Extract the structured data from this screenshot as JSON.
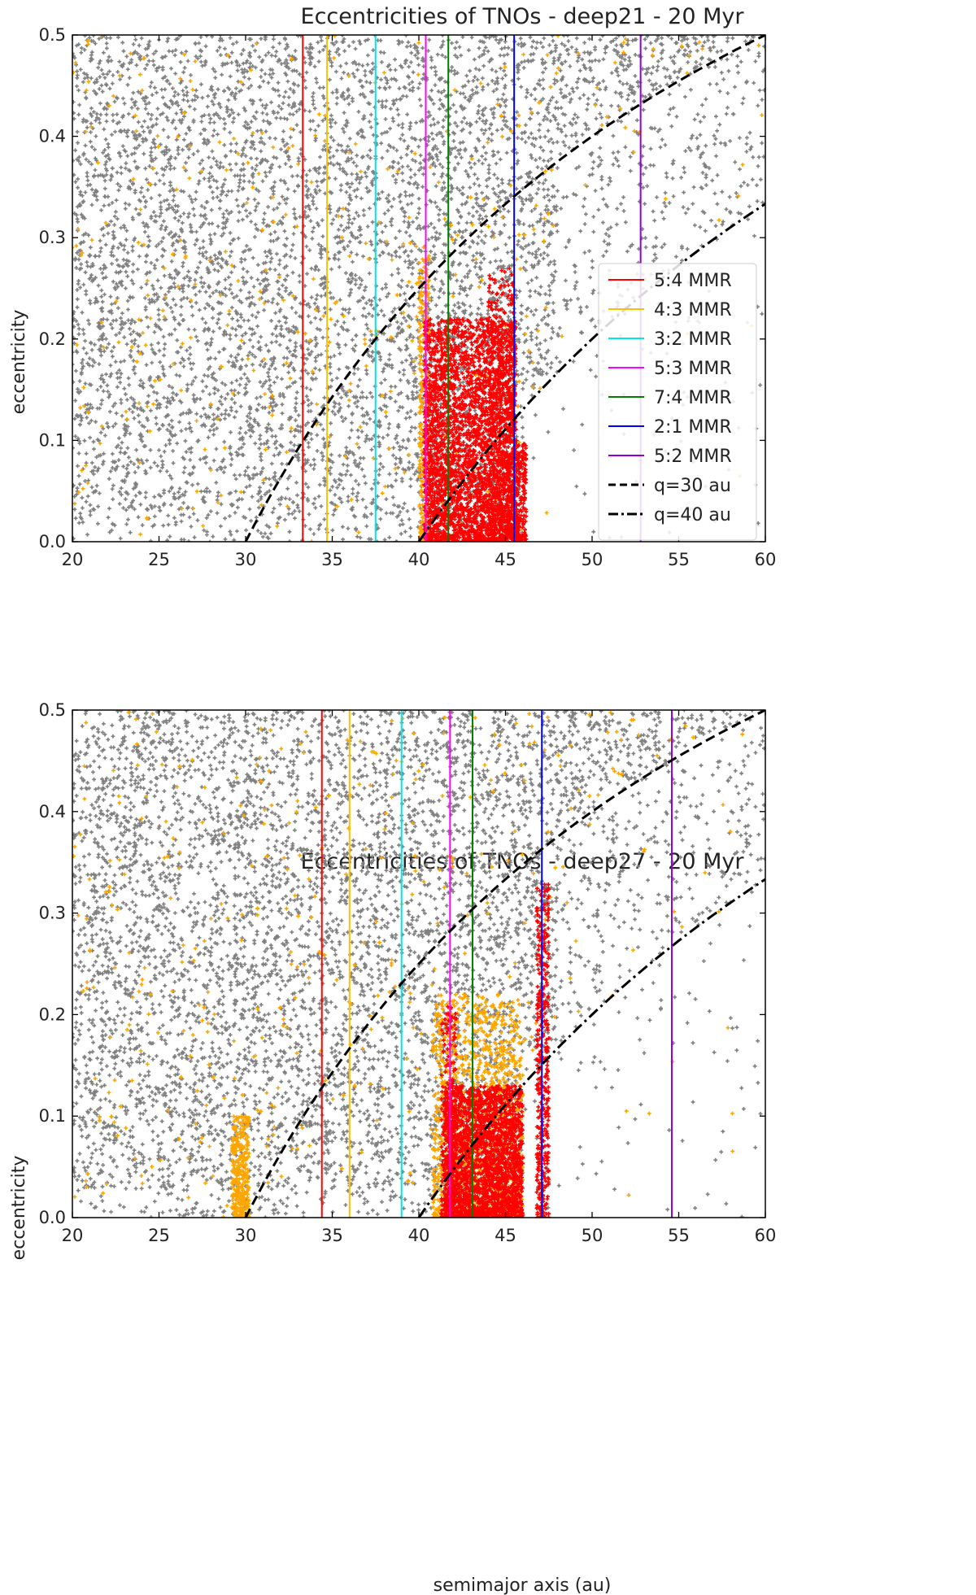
{
  "chart_data": [
    {
      "type": "scatter",
      "title": "Eccentricities of TNOs - deep21 - 20 Myr",
      "xlabel": "",
      "ylabel": "eccentricity",
      "xlim": [
        20,
        60
      ],
      "ylim": [
        0,
        0.5
      ],
      "xticks": [
        20,
        25,
        30,
        35,
        40,
        45,
        50,
        55,
        60
      ],
      "yticks": [
        0.0,
        0.1,
        0.2,
        0.3,
        0.4,
        0.5
      ],
      "grid": false,
      "scatter_colors": {
        "background": "#808080",
        "intermediate": "#ffa500",
        "resonant": "#ff0000"
      },
      "resonances": [
        {
          "name": "5:4 MMR",
          "a": 33.3,
          "color": "#ff0000"
        },
        {
          "name": "4:3 MMR",
          "a": 34.7,
          "color": "#ffc000"
        },
        {
          "name": "3:2 MMR",
          "a": 37.5,
          "color": "#00e5e5"
        },
        {
          "name": "5:3 MMR",
          "a": 40.4,
          "color": "#ff00ff"
        },
        {
          "name": "7:4 MMR",
          "a": 41.7,
          "color": "#008000"
        },
        {
          "name": "2:1 MMR",
          "a": 45.5,
          "color": "#0000ff"
        },
        {
          "name": "5:2 MMR",
          "a": 52.8,
          "color": "#9400d3"
        }
      ],
      "perihelion_curves": [
        {
          "name": "q=30 au",
          "q": 30,
          "style": "dashed"
        },
        {
          "name": "q=40 au",
          "q": 40,
          "style": "dashdot"
        }
      ],
      "legend_position": "center-right",
      "clusters": [
        {
          "a_min": 40.0,
          "a_max": 40.6,
          "e_max": 0.28,
          "color": "#ffa500",
          "count": 300
        },
        {
          "a_min": 40.3,
          "a_max": 45.6,
          "e_max": 0.22,
          "color": "#ff0000",
          "count": 3200
        },
        {
          "a_min": 44.0,
          "a_max": 45.6,
          "e_max": 0.27,
          "color": "#ff0000",
          "count": 500
        },
        {
          "a_min": 45.6,
          "a_max": 46.2,
          "e_max": 0.1,
          "color": "#ff0000",
          "count": 200
        }
      ]
    },
    {
      "type": "scatter",
      "title": "Eccentricities of TNOs - deep27 - 20 Myr",
      "xlabel": "semimajor axis (au)",
      "ylabel": "eccentricity",
      "xlim": [
        20,
        60
      ],
      "ylim": [
        0,
        0.5
      ],
      "xticks": [
        20,
        25,
        30,
        35,
        40,
        45,
        50,
        55,
        60
      ],
      "yticks": [
        0.0,
        0.1,
        0.2,
        0.3,
        0.4,
        0.5
      ],
      "grid": false,
      "scatter_colors": {
        "background": "#808080",
        "intermediate": "#ffa500",
        "resonant": "#ff0000"
      },
      "resonances": [
        {
          "name": "5:4 MMR",
          "a": 34.4,
          "color": "#ff0000"
        },
        {
          "name": "4:3 MMR",
          "a": 36.0,
          "color": "#ffc000"
        },
        {
          "name": "3:2 MMR",
          "a": 39.0,
          "color": "#00e5e5"
        },
        {
          "name": "5:3 MMR",
          "a": 41.8,
          "color": "#ff00ff"
        },
        {
          "name": "7:4 MMR",
          "a": 43.1,
          "color": "#008000"
        },
        {
          "name": "2:1 MMR",
          "a": 47.1,
          "color": "#0000ff"
        },
        {
          "name": "5:2 MMR",
          "a": 54.6,
          "color": "#9400d3"
        }
      ],
      "perihelion_curves": [
        {
          "name": "q=30 au",
          "q": 30,
          "style": "dashed"
        },
        {
          "name": "q=40 au",
          "q": 40,
          "style": "dashdot"
        }
      ],
      "clusters": [
        {
          "a_min": 29.2,
          "a_max": 30.2,
          "e_max": 0.1,
          "color": "#ffa500",
          "count": 350
        },
        {
          "a_min": 40.8,
          "a_max": 46.0,
          "e_max": 0.22,
          "color": "#ffa500",
          "count": 1400
        },
        {
          "a_min": 41.5,
          "a_max": 46.0,
          "e_max": 0.13,
          "color": "#ff0000",
          "count": 2400
        },
        {
          "a_min": 41.3,
          "a_max": 42.2,
          "e_max": 0.21,
          "color": "#ff0000",
          "count": 250
        },
        {
          "a_min": 46.8,
          "a_max": 47.5,
          "e_max": 0.33,
          "color": "#ff0000",
          "count": 450
        }
      ]
    }
  ]
}
